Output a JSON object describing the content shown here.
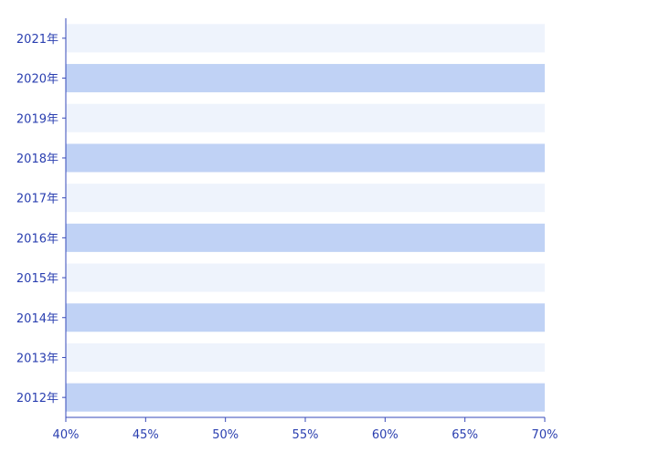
{
  "chart_data": {
    "type": "bar",
    "orientation": "horizontal",
    "categories": [
      "2012年",
      "2013年",
      "2014年",
      "2015年",
      "2016年",
      "2017年",
      "2018年",
      "2019年",
      "2020年",
      "2021年"
    ],
    "values": [
      70,
      70,
      70,
      70,
      70,
      70,
      70,
      70,
      70,
      70
    ],
    "xlim": [
      40,
      70
    ],
    "xticks": [
      "40%",
      "45%",
      "50%",
      "55%",
      "60%",
      "65%",
      "70%"
    ],
    "xtick_values": [
      40,
      45,
      50,
      55,
      60,
      65,
      70
    ],
    "bar_colors": [
      "#c0d2f5",
      "#eef3fc"
    ],
    "axis_color": "#3648b8",
    "label_color": "#2a3fb0",
    "grid": false,
    "legend": "none"
  }
}
